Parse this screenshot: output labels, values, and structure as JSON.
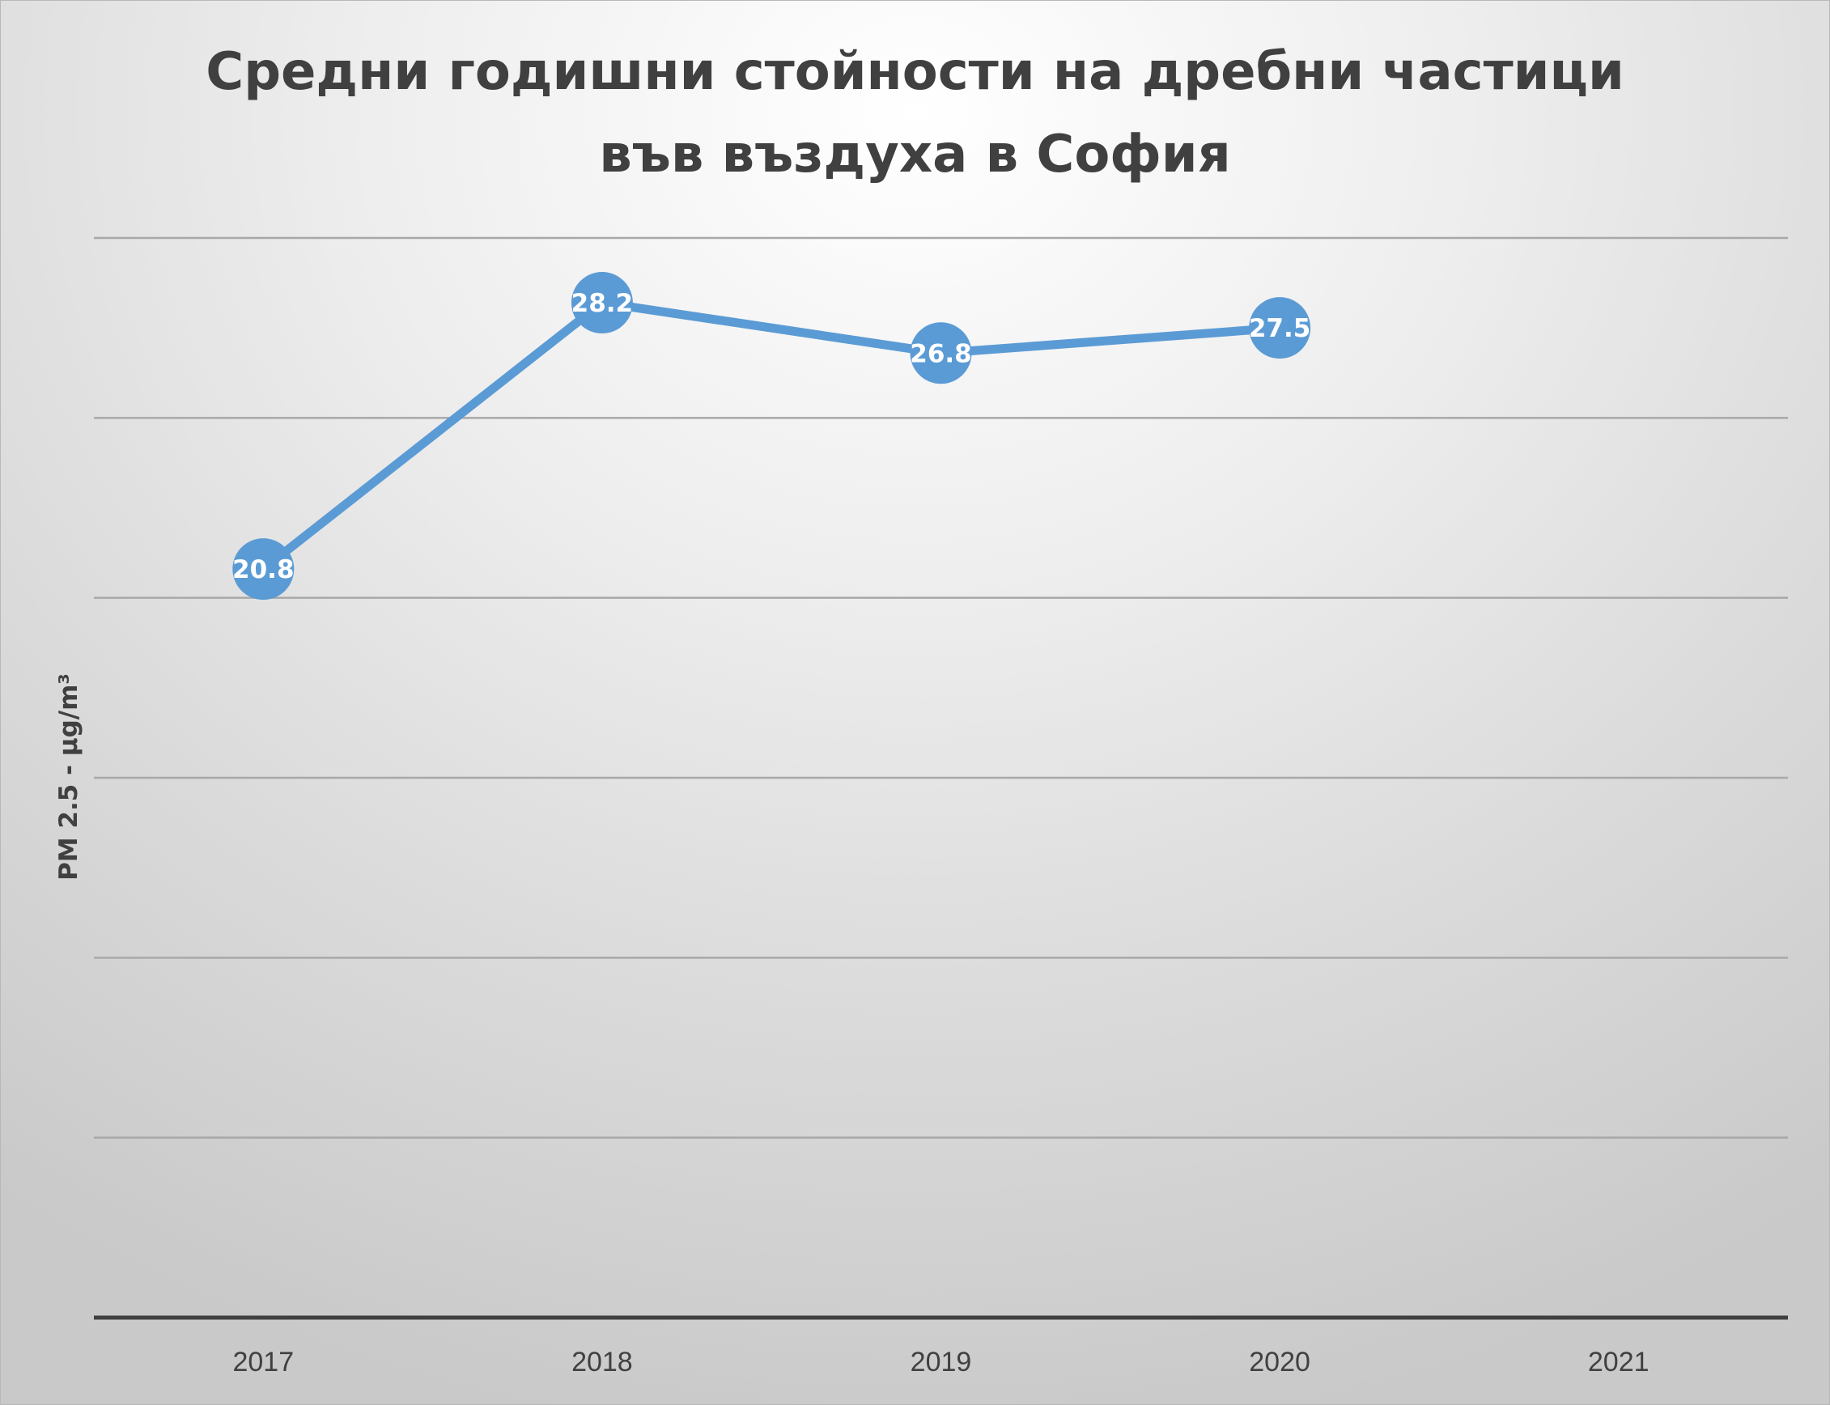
{
  "chart_data": {
    "type": "line",
    "title": [
      "Средни годишни стойности на дребни частици",
      "във въздуха в София"
    ],
    "ylabel": "PM 2.5 - µg/m³",
    "xlabel": "",
    "categories": [
      "2017",
      "2018",
      "2019",
      "2020",
      "2021"
    ],
    "series": [
      {
        "values": [
          20.8,
          28.2,
          26.8,
          27.5,
          null
        ]
      }
    ],
    "data_labels": [
      "20.8",
      "28.2",
      "26.8",
      "27.5",
      ""
    ],
    "ylim": [
      0,
      30
    ],
    "gridlines": [
      5,
      10,
      15,
      20,
      25,
      30
    ],
    "grid": true,
    "legend": "none",
    "colors": {
      "line": "#5b9bd5",
      "grid": "#a8a8a8",
      "axis": "#404040",
      "text": "#404040",
      "label": "#ffffff"
    }
  }
}
